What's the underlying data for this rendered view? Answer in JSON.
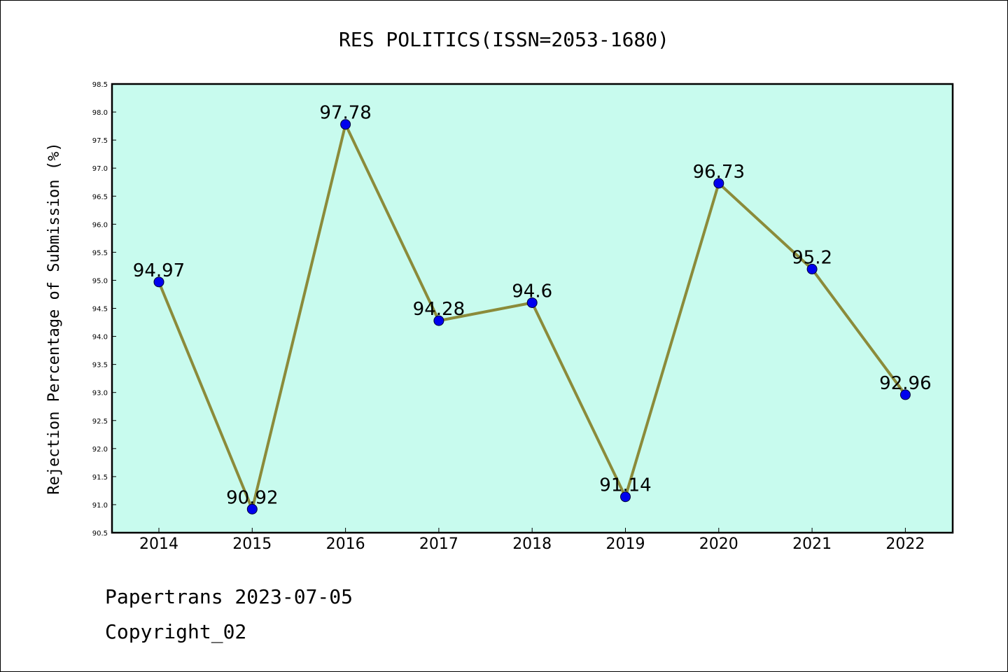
{
  "chart_data": {
    "type": "line",
    "title": "RES POLITICS(ISSN=2053-1680)",
    "ylabel": "Rejection Percentage of Submission (%)",
    "xlabel": "",
    "categories": [
      "2014",
      "2015",
      "2016",
      "2017",
      "2018",
      "2019",
      "2020",
      "2021",
      "2022"
    ],
    "values": [
      94.97,
      90.92,
      97.78,
      94.28,
      94.6,
      91.14,
      96.73,
      95.2,
      92.96
    ],
    "data_labels": [
      "94.97",
      "90.92",
      "97.78",
      "94.28",
      "94.6",
      "91.14",
      "96.73",
      "95.2",
      "92.96"
    ],
    "ylim": [
      90.5,
      98.5
    ],
    "yticks": [
      "90.5",
      "91.0",
      "91.5",
      "92.0",
      "92.5",
      "93.0",
      "93.5",
      "94.0",
      "94.5",
      "95.0",
      "95.5",
      "96.0",
      "96.5",
      "97.0",
      "97.5",
      "98.0",
      "98.5"
    ],
    "grid": false,
    "colors": {
      "plot_background": "#c8fbee",
      "line": "#8b8b3a",
      "marker": "#0000ee"
    }
  },
  "footer": {
    "line1": "Papertrans 2023-07-05",
    "line2": "Copyright_02"
  }
}
